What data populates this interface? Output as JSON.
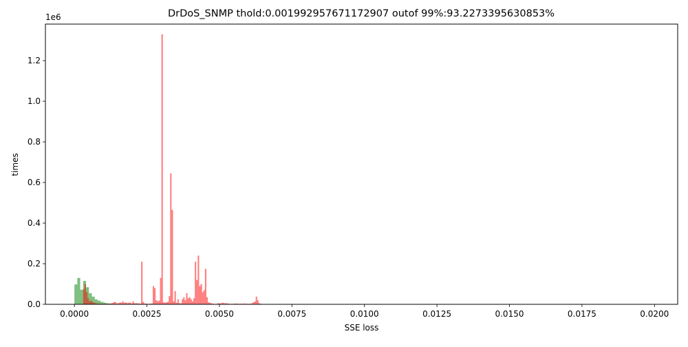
{
  "chart_data": {
    "type": "bar",
    "title": "DrDoS_SNMP thold:0.001992957671172907 outof 99%:93.2273395630853%",
    "xlabel": "SSE loss",
    "ylabel": "times",
    "y_offset_text": "1e6",
    "xlim": [
      -0.001,
      0.0208
    ],
    "ylim": [
      0,
      1380000
    ],
    "xticks": [
      0.0,
      0.0025,
      0.005,
      0.0075,
      0.01,
      0.0125,
      0.015,
      0.0175,
      0.02
    ],
    "xtick_labels": [
      "0.0000",
      "0.0025",
      "0.0050",
      "0.0075",
      "0.0100",
      "0.0125",
      "0.0150",
      "0.0175",
      "0.0200"
    ],
    "yticks": [
      0,
      200000,
      400000,
      600000,
      800000,
      1000000,
      1200000
    ],
    "ytick_labels": [
      "0.0",
      "0.2",
      "0.4",
      "0.6",
      "0.8",
      "1.0",
      "1.2"
    ],
    "grid": false,
    "colors": {
      "series_green": "#008000",
      "series_red": "#ff0000",
      "bar_alpha": 0.5
    },
    "series": [
      {
        "color": "green",
        "bin_width": 0.0001,
        "x": [
          5e-05,
          0.00015,
          0.00025,
          0.00035,
          0.00045,
          0.00055,
          0.00065,
          0.00075,
          0.00085,
          0.00095,
          0.00105,
          0.00115,
          0.00125
        ],
        "values": [
          98000,
          130000,
          72000,
          115000,
          84000,
          55000,
          38000,
          24000,
          18000,
          12000,
          8000,
          5000,
          3000
        ]
      },
      {
        "color": "red",
        "bin_width": 5e-05,
        "x": [
          0.000325,
          0.000375,
          0.000425,
          0.000475,
          0.000525,
          0.000575,
          0.000625,
          0.000675,
          0.000725,
          0.000775,
          0.000825,
          0.000875,
          0.000925,
          0.000975,
          0.001025,
          0.001075,
          0.001125,
          0.001175,
          0.001225,
          0.001275,
          0.001325,
          0.001375,
          0.001425,
          0.001475,
          0.001525,
          0.001575,
          0.001625,
          0.001675,
          0.001725,
          0.001775,
          0.001825,
          0.001875,
          0.001925,
          0.001975,
          0.002025,
          0.002075,
          0.002125,
          0.002175,
          0.002225,
          0.002275,
          0.002325,
          0.002375,
          0.002425,
          0.002475,
          0.002525,
          0.002575,
          0.002625,
          0.002675,
          0.002725,
          0.002775,
          0.002825,
          0.002875,
          0.002925,
          0.002975,
          0.003025,
          0.003075,
          0.003125,
          0.003175,
          0.003225,
          0.003275,
          0.003325,
          0.003375,
          0.003425,
          0.003475,
          0.003525,
          0.003575,
          0.003625,
          0.003675,
          0.003725,
          0.003775,
          0.003825,
          0.003875,
          0.003925,
          0.003975,
          0.004025,
          0.004075,
          0.004125,
          0.004175,
          0.004225,
          0.004275,
          0.004325,
          0.004375,
          0.004425,
          0.004475,
          0.004525,
          0.004575,
          0.004625,
          0.004675,
          0.004725,
          0.004775,
          0.004825,
          0.004875,
          0.004925,
          0.004975,
          0.005025,
          0.005075,
          0.005125,
          0.005175,
          0.005225,
          0.005275,
          0.005325,
          0.005375,
          0.005425,
          0.005475,
          0.005525,
          0.005575,
          0.005625,
          0.005675,
          0.005725,
          0.005775,
          0.005825,
          0.005875,
          0.005925,
          0.005975,
          0.006025,
          0.006075,
          0.006125,
          0.006175,
          0.006225,
          0.006275,
          0.006325,
          0.006375,
          0.006425
        ],
        "values": [
          75000,
          100000,
          60000,
          30000,
          15000,
          18000,
          12000,
          8000,
          6000,
          4000,
          3000,
          2500,
          2000,
          2000,
          3000,
          2000,
          2500,
          3000,
          2000,
          5000,
          7000,
          12000,
          10000,
          4000,
          6000,
          9000,
          8000,
          15000,
          7000,
          10000,
          6000,
          8000,
          9000,
          4000,
          15000,
          5000,
          6000,
          5000,
          4000,
          3000,
          210000,
          12000,
          4000,
          3000,
          2000,
          2000,
          3000,
          4000,
          90000,
          80000,
          20000,
          15000,
          18000,
          130000,
          1330000,
          10000,
          8000,
          10000,
          12000,
          40000,
          645000,
          465000,
          15000,
          65000,
          8000,
          25000,
          6000,
          5000,
          25000,
          35000,
          20000,
          55000,
          30000,
          35000,
          25000,
          15000,
          30000,
          210000,
          120000,
          240000,
          90000,
          100000,
          60000,
          70000,
          175000,
          35000,
          10000,
          8000,
          5000,
          3000,
          2000,
          2000,
          3000,
          6000,
          4000,
          6000,
          8000,
          5000,
          6000,
          4000,
          3000,
          2000,
          2000,
          2000,
          3000,
          4000,
          3000,
          2000,
          3000,
          2000,
          3000,
          4000,
          2000,
          3000,
          2000,
          3000,
          5000,
          10000,
          14000,
          38000,
          20000,
          5000,
          3000
        ]
      }
    ]
  }
}
